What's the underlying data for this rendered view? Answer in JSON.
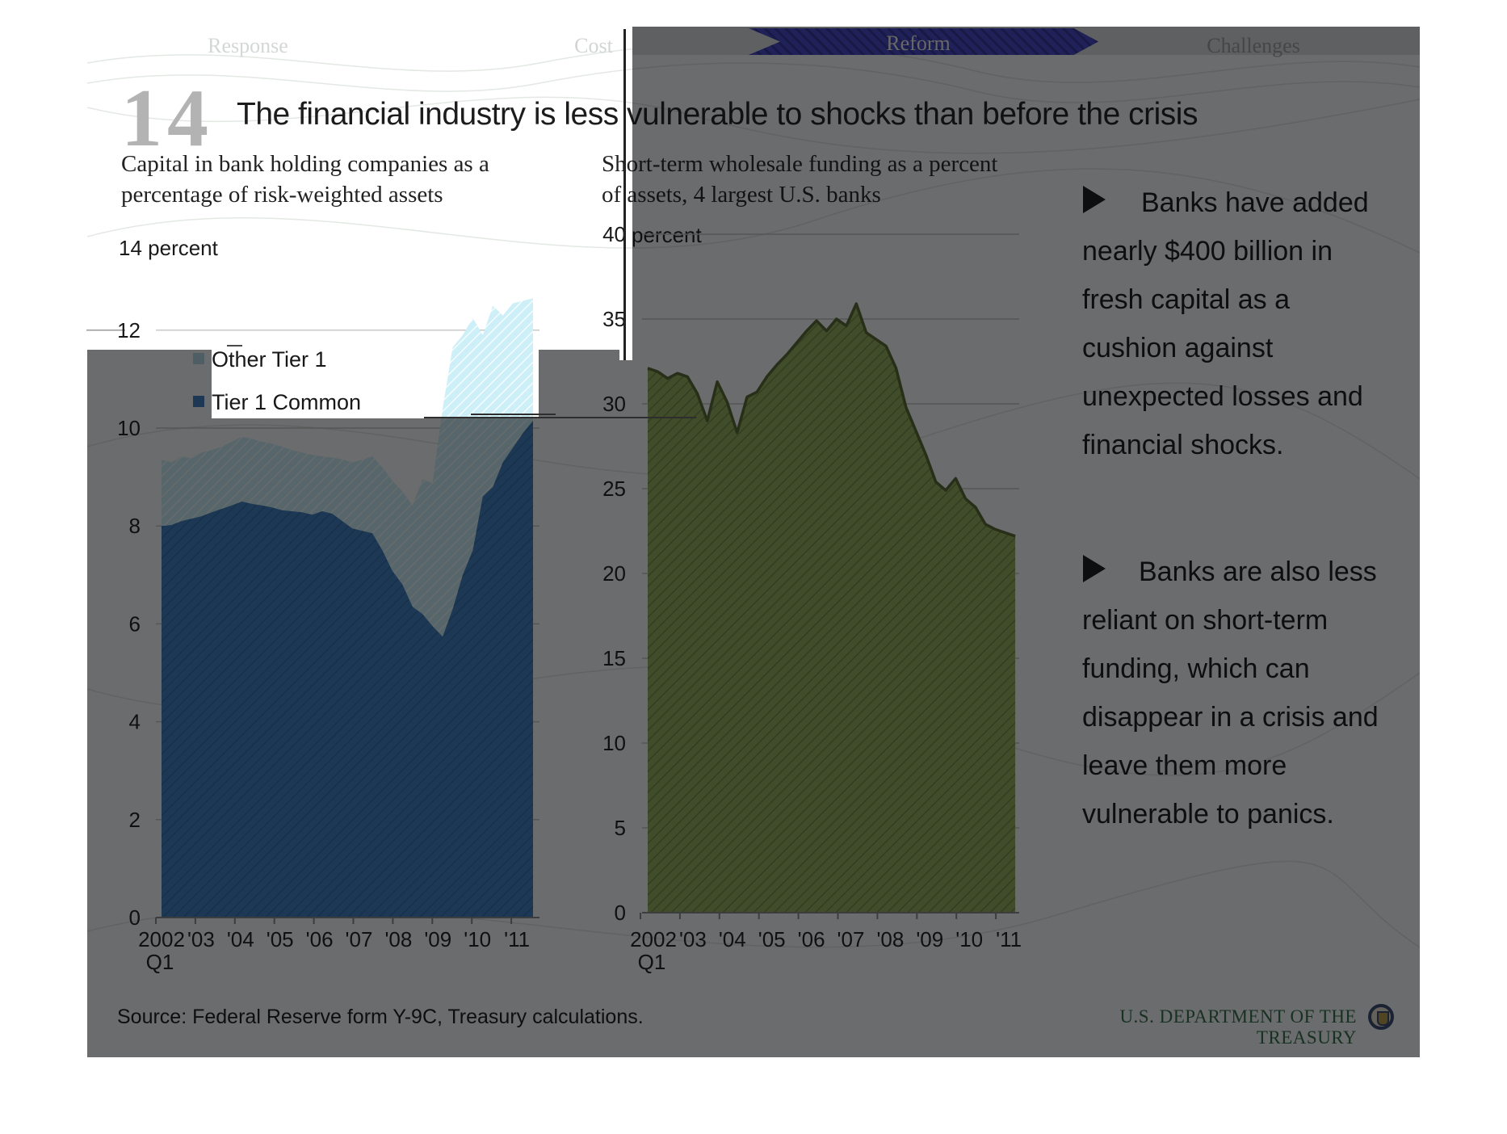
{
  "nav": {
    "tabs": [
      {
        "label": "Response"
      },
      {
        "label": "Cost"
      },
      {
        "label": "Reform",
        "active": true
      },
      {
        "label": "Challenges"
      }
    ],
    "arrow_color": "#4444cc"
  },
  "header": {
    "slide_number": "14",
    "title": "The financial industry is less vulnerable to shocks than before the crisis"
  },
  "bullets": [
    {
      "lines": [
        "Banks have added",
        "nearly  $400 billion in",
        "fresh capital as a",
        "cushion against",
        "unexpected losses and",
        "financial shocks."
      ]
    },
    {
      "lines": [
        "Banks are also less",
        "reliant on short-term",
        "funding, which can",
        "disappear in a crisis and",
        "leave them more",
        "vulnerable to panics."
      ]
    }
  ],
  "footer": {
    "source": "Source: Federal Reserve form Y-9C, Treasury calculations.",
    "branding": "U.S. DEPARTMENT OF THE TREASURY",
    "seal_icon": "treasury-seal"
  },
  "chart_data": [
    {
      "type": "area",
      "stacked": true,
      "title": "Capital in bank holding companies as a percentage of risk-weighted assets",
      "title_lines": [
        "Capital in bank holding companies as a",
        "percentage of risk-weighted assets"
      ],
      "unit_label": "14 percent",
      "ylabel": "percent",
      "ylim": [
        0,
        14
      ],
      "yticks": [
        0,
        2,
        4,
        6,
        8,
        10,
        12
      ],
      "x_tick_labels": [
        "2002",
        "'03",
        "'04",
        "'05",
        "'06",
        "'07",
        "'08",
        "'09",
        "'10",
        "'11"
      ],
      "x_sub_label": "Q1",
      "x_quarters": "2002Q1-2011Q2",
      "grid": true,
      "legend_position": "upper-left-inside",
      "series": [
        {
          "name": "Other Tier 1",
          "color": "#cdeff8",
          "hatch": "diagonal",
          "stack_top": [
            9.35,
            9.3,
            9.42,
            9.38,
            9.5,
            9.55,
            9.62,
            9.72,
            9.82,
            9.78,
            9.72,
            9.68,
            9.62,
            9.55,
            9.5,
            9.45,
            9.42,
            9.4,
            9.36,
            9.3,
            9.35,
            9.42,
            9.2,
            8.92,
            8.7,
            8.42,
            8.95,
            8.88,
            10.4,
            11.65,
            11.9,
            12.25,
            11.9,
            12.5,
            12.3,
            12.55,
            12.6,
            12.65
          ]
        },
        {
          "name": "Tier 1 Common",
          "color": "#3a7ec0",
          "hatch": "diagonal",
          "stack_top": [
            8.0,
            8.02,
            8.1,
            8.15,
            8.2,
            8.28,
            8.35,
            8.42,
            8.5,
            8.45,
            8.42,
            8.38,
            8.32,
            8.3,
            8.28,
            8.23,
            8.3,
            8.25,
            8.1,
            7.95,
            7.9,
            7.85,
            7.5,
            7.08,
            6.8,
            6.35,
            6.2,
            5.95,
            5.74,
            6.3,
            7.0,
            7.5,
            8.6,
            8.8,
            9.3,
            9.6,
            9.9,
            10.15
          ]
        }
      ]
    },
    {
      "type": "area",
      "stacked": false,
      "title": "Short-term wholesale funding as a percent of assets, 4 largest U.S. banks",
      "title_lines": [
        "Short-term wholesale funding as a percent",
        "of assets, 4 largest U.S. banks"
      ],
      "unit_label": "percent",
      "ylabel": "percent",
      "ylim": [
        0,
        40
      ],
      "yticks": [
        0,
        5,
        10,
        15,
        20,
        25,
        30,
        35,
        40
      ],
      "x_tick_labels": [
        "2002",
        "'03",
        "'04",
        "'05",
        "'06",
        "'07",
        "'08",
        "'09",
        "'10",
        "'11"
      ],
      "x_sub_label": "Q1",
      "x_quarters": "2002Q1-2011Q2",
      "grid": true,
      "series": [
        {
          "name": "Short-term wholesale funding",
          "color": "#96b258",
          "outline": "#55682c",
          "hatch": "diagonal",
          "values": [
            32.1,
            31.9,
            31.5,
            31.8,
            31.6,
            30.6,
            29.0,
            31.3,
            30.1,
            28.3,
            30.4,
            30.7,
            31.6,
            32.3,
            32.9,
            33.6,
            34.3,
            34.9,
            34.3,
            35.0,
            34.6,
            35.9,
            34.2,
            33.8,
            33.4,
            32.1,
            29.8,
            28.4,
            27.0,
            25.4,
            24.9,
            25.6,
            24.4,
            23.9,
            22.9,
            22.6,
            22.4,
            22.2
          ]
        }
      ]
    }
  ]
}
